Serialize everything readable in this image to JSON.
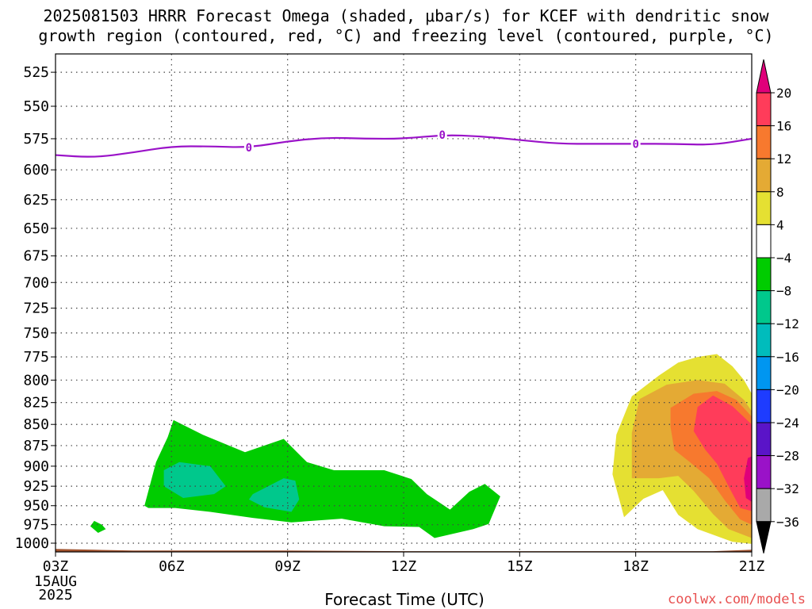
{
  "title_line1": "2025081503 HRRR Forecast Omega (shaded, μbar/s) for KCEF with dendritic snow",
  "title_line2": "growth region (contoured, red, °C) and freezing level (contoured, purple, °C)",
  "xlabel": "Forecast Time (UTC)",
  "credit": "coolwx.com/models",
  "colors": {
    "freezing_line": "#9a12c8",
    "terrain": "#a0522d",
    "grid": "#444444"
  },
  "chart_data": {
    "type": "contour",
    "x_ticks": [
      "03Z",
      "06Z",
      "09Z",
      "12Z",
      "15Z",
      "18Z",
      "21Z"
    ],
    "x_tick_hours": [
      3,
      6,
      9,
      12,
      15,
      18,
      21
    ],
    "x_date_label": [
      "15AUG",
      "2025"
    ],
    "xlim": [
      3,
      21
    ],
    "y_ticks": [
      525,
      550,
      575,
      600,
      625,
      650,
      675,
      700,
      725,
      750,
      775,
      800,
      825,
      850,
      875,
      900,
      925,
      950,
      975,
      1000
    ],
    "ylim": [
      1012,
      512
    ],
    "y_scale": "log-pressure",
    "grid": true,
    "colorbar": {
      "labels": [
        "20",
        "16",
        "12",
        "8",
        "4",
        "−4",
        "−8",
        "−12",
        "−16",
        "−20",
        "−24",
        "−28",
        "−32",
        "−36"
      ],
      "colors": [
        "#ff3c5a",
        "#f7792e",
        "#e4aa34",
        "#e5e032",
        "#ffffff",
        "#00cc00",
        "#00c88c",
        "#00bcbc",
        "#0096f0",
        "#1e3cff",
        "#5a14c8",
        "#9a12c8",
        "#a9a9a9"
      ],
      "top_arrow": "#e0007a",
      "bottom_arrow": "#000000"
    },
    "freezing_level": {
      "label": "0",
      "x": [
        3,
        4,
        5,
        6,
        7,
        8,
        9,
        10,
        11,
        12,
        13,
        14,
        15,
        16,
        17,
        18,
        19,
        20,
        21
      ],
      "y": [
        588,
        590,
        586,
        581,
        581,
        582,
        577,
        574,
        575,
        575,
        572,
        573,
        576,
        579,
        579,
        579,
        579,
        580,
        575
      ],
      "label_x": [
        8,
        13,
        18
      ]
    },
    "terrain_surface": {
      "x": [
        3,
        4,
        5,
        6,
        9,
        12,
        15,
        18,
        20,
        21
      ],
      "y": [
        1008,
        1009,
        1010,
        1010,
        1010,
        1011,
        1011,
        1011,
        1011,
        1009
      ]
    },
    "regions": [
      {
        "level": -4,
        "x": [
          4,
          4.2,
          4.3,
          4.1,
          3.9
        ],
        "y": [
          970,
          975,
          981,
          986,
          977
        ]
      },
      {
        "level": -4,
        "x": [
          5.3,
          5.6,
          5.9,
          6.05,
          6.8,
          7.9,
          8.9,
          9.5,
          10.2,
          11.5,
          12.2,
          12.6,
          13.2,
          13.7,
          14.1,
          14.5,
          14.2,
          13.8,
          13.3,
          12.8,
          12.4,
          11.5,
          10.4,
          9.1,
          8.1,
          7,
          6.1,
          5.4
        ],
        "y": [
          950,
          895,
          865,
          845,
          862,
          883,
          867,
          895,
          905,
          905,
          916,
          935,
          955,
          932,
          922,
          938,
          974,
          981,
          987,
          993,
          978,
          977,
          967,
          972,
          966,
          958,
          953,
          953
        ]
      },
      {
        "level": -8,
        "x": [
          5.8,
          6.2,
          7,
          7.4,
          7.1,
          6.3,
          5.8
        ],
        "y": [
          905,
          895,
          900,
          925,
          935,
          940,
          925
        ]
      },
      {
        "level": -8,
        "x": [
          8.1,
          8.9,
          9.2,
          9.3,
          9.1,
          8.4,
          8.0
        ],
        "y": [
          935,
          915,
          918,
          942,
          958,
          952,
          942
        ]
      },
      {
        "level": 4,
        "x": [
          18.6,
          19.1,
          19.6,
          20.1,
          20.5,
          20.8,
          21,
          21,
          20.5,
          19.6,
          19.1,
          18.7,
          18.2,
          17.7,
          17.4,
          17.5,
          17.9
        ],
        "y": [
          795,
          781,
          775,
          772,
          785,
          800,
          815,
          1001,
          998,
          981,
          962,
          930,
          941,
          965,
          910,
          862,
          818
        ]
      },
      {
        "level": 8,
        "x": [
          18.1,
          18.8,
          19.6,
          20.3,
          20.8,
          21,
          21,
          20.4,
          20,
          19.5,
          19.1,
          18.6,
          17.9,
          17.9
        ],
        "y": [
          821,
          805,
          800,
          804,
          822,
          835,
          993,
          981,
          961,
          931,
          912,
          915,
          915,
          860
        ]
      },
      {
        "level": 12,
        "x": [
          18.9,
          19.5,
          20.1,
          20.6,
          21,
          21,
          20.7,
          20.3,
          19.9,
          19.4,
          19.0,
          18.9
        ],
        "y": [
          831,
          815,
          812,
          822,
          841,
          975,
          968,
          943,
          915,
          895,
          880,
          853
        ]
      },
      {
        "level": 16,
        "x": [
          19.6,
          20,
          20.5,
          21,
          21,
          20.7,
          20.4,
          20.1,
          19.8,
          19.5
        ],
        "y": [
          830,
          817,
          829,
          850,
          957,
          953,
          925,
          897,
          880,
          858
        ]
      },
      {
        "level": 20,
        "x": [
          20.9,
          21,
          21,
          20.85,
          20.8
        ],
        "y": [
          890,
          888,
          945,
          940,
          915
        ]
      }
    ]
  }
}
